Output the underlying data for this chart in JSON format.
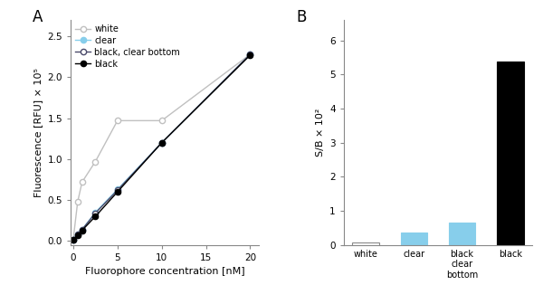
{
  "panel_A": {
    "x_conc": [
      0,
      0.5,
      1,
      2.5,
      5,
      10,
      20
    ],
    "white_y": [
      0.02,
      0.48,
      0.72,
      0.97,
      1.47,
      1.47,
      2.28
    ],
    "clear_y": [
      0.02,
      0.08,
      0.14,
      0.35,
      0.63,
      1.2,
      2.28
    ],
    "black_clear_y": [
      0.02,
      0.08,
      0.14,
      0.34,
      0.62,
      1.2,
      2.28
    ],
    "black_y": [
      0.01,
      0.07,
      0.13,
      0.3,
      0.6,
      1.2,
      2.27
    ],
    "xlabel": "Fluorophore concentration [nM]",
    "ylabel": "Fluorescence [RFU] × 10⁵",
    "xlim": [
      -0.3,
      21
    ],
    "ylim": [
      -0.05,
      2.7
    ],
    "xticks": [
      0,
      5,
      10,
      15,
      20
    ],
    "yticks": [
      0,
      0.5,
      1.0,
      1.5,
      2.0,
      2.5
    ],
    "label_A": "A"
  },
  "panel_B": {
    "categories": [
      "white",
      "clear",
      "black\nclear\nbottom",
      "black"
    ],
    "values": [
      0.09,
      0.37,
      0.65,
      5.37
    ],
    "colors": [
      "#ffffff",
      "#87ceeb",
      "#87ceeb",
      "#000000"
    ],
    "edge_colors": [
      "#888888",
      "#87ceeb",
      "#87ceeb",
      "#000000"
    ],
    "ylabel": "S/B × 10²",
    "ylim": [
      0,
      6.6
    ],
    "yticks": [
      0,
      1,
      2,
      3,
      4,
      5,
      6
    ],
    "label_B": "B"
  },
  "white_color": "#c0c0c0",
  "clear_color": "#87ceeb",
  "black_clear_color": "#4a4a6a",
  "black_color": "#000000",
  "bg_color": "#ffffff"
}
